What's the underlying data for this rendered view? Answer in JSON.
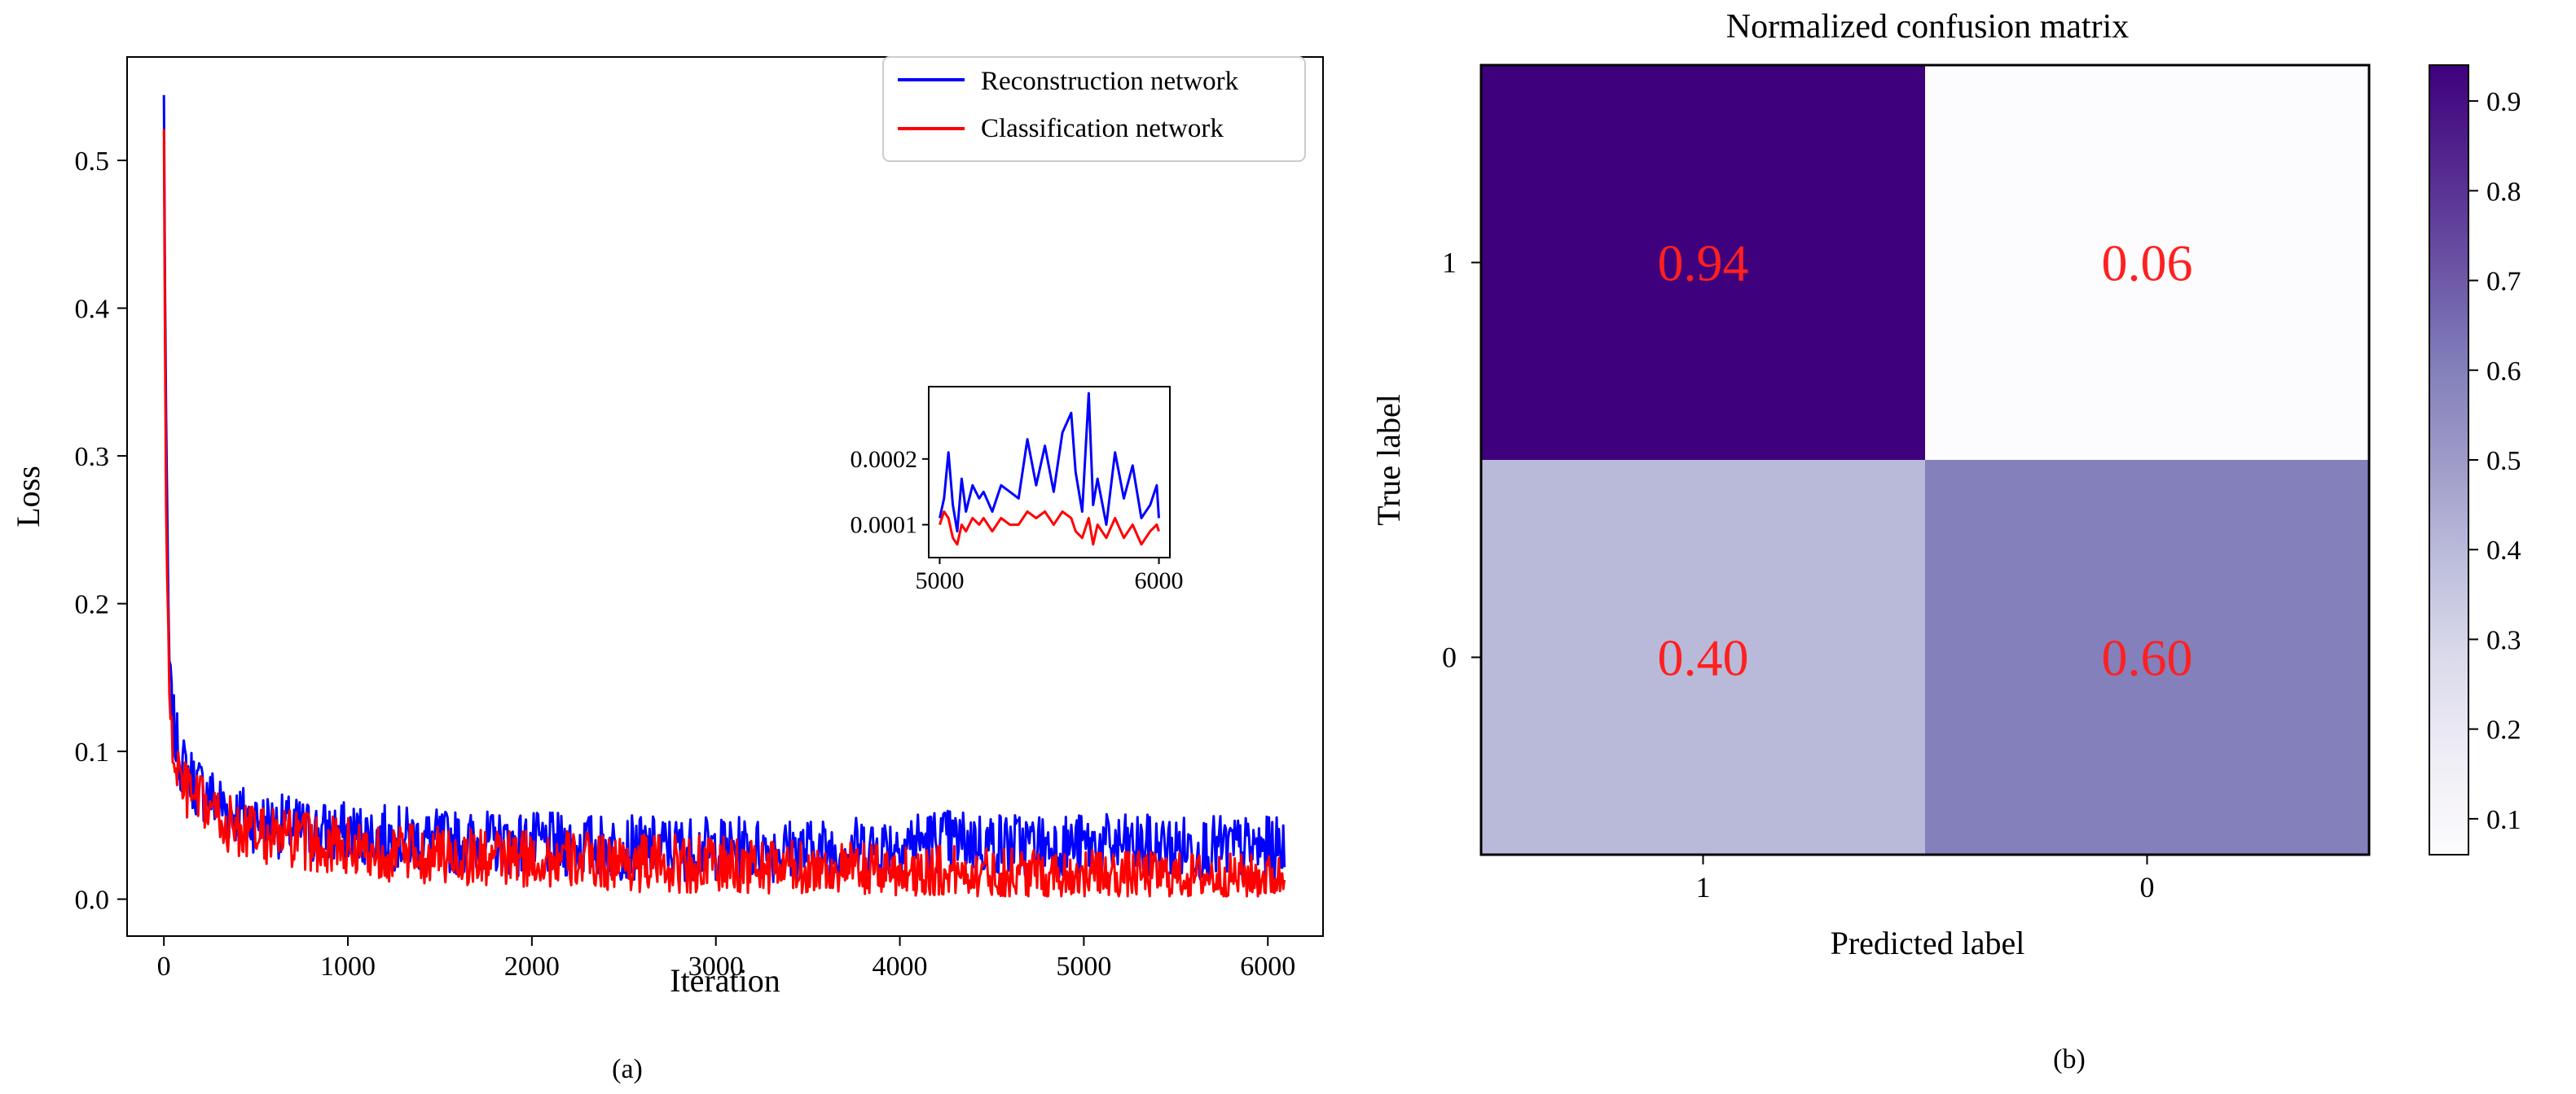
{
  "chart_data": [
    {
      "type": "line",
      "panel_label": "(a)",
      "title": "",
      "xlabel": "Iteration",
      "ylabel": "Loss",
      "xlim": [
        -200,
        6300
      ],
      "ylim": [
        -0.025,
        0.57
      ],
      "xticks": [
        0,
        1000,
        2000,
        3000,
        4000,
        5000,
        6000
      ],
      "yticks": [
        0.0,
        0.1,
        0.2,
        0.3,
        0.4,
        0.5
      ],
      "legend": {
        "position": "top-right"
      },
      "series": [
        {
          "name": "Reconstruction network",
          "color": "#0000ff",
          "x": [
            0,
            10,
            20,
            30,
            40,
            60,
            80,
            100,
            130,
            160,
            200,
            250,
            300,
            350,
            400,
            450,
            500,
            600,
            700,
            800,
            900,
            1000,
            1100,
            1200,
            1300,
            1400,
            1500,
            1700,
            2000,
            2300,
            2500,
            3000,
            3500,
            3800,
            4000,
            4200,
            4500,
            5000,
            5500,
            6000,
            6090
          ],
          "y": [
            0.54,
            0.35,
            0.22,
            0.16,
            0.13,
            0.11,
            0.1,
            0.09,
            0.085,
            0.08,
            0.075,
            0.07,
            0.065,
            0.06,
            0.058,
            0.055,
            0.053,
            0.05,
            0.048,
            0.046,
            0.045,
            0.044,
            0.043,
            0.042,
            0.041,
            0.04,
            0.039,
            0.038,
            0.037,
            0.036,
            0.035,
            0.034,
            0.033,
            0.035,
            0.038,
            0.04,
            0.038,
            0.036,
            0.035,
            0.034,
            0.034
          ]
        },
        {
          "name": "Classification network",
          "color": "#ff0000",
          "x": [
            0,
            10,
            20,
            30,
            40,
            60,
            80,
            100,
            130,
            160,
            200,
            250,
            300,
            350,
            400,
            450,
            500,
            600,
            700,
            800,
            900,
            1000,
            1100,
            1200,
            1300,
            1400,
            1500,
            1700,
            2000,
            2300,
            2500,
            3000,
            3500,
            3800,
            4000,
            4200,
            4500,
            5000,
            5500,
            6000,
            6090
          ],
          "y": [
            0.52,
            0.3,
            0.19,
            0.14,
            0.11,
            0.095,
            0.085,
            0.078,
            0.072,
            0.068,
            0.064,
            0.06,
            0.055,
            0.05,
            0.048,
            0.046,
            0.044,
            0.042,
            0.04,
            0.038,
            0.037,
            0.035,
            0.034,
            0.032,
            0.031,
            0.03,
            0.03,
            0.028,
            0.027,
            0.026,
            0.025,
            0.023,
            0.021,
            0.02,
            0.019,
            0.019,
            0.018,
            0.017,
            0.016,
            0.015,
            0.015
          ]
        }
      ],
      "inset": {
        "xlim": [
          4950,
          6050
        ],
        "ylim": [
          5e-05,
          0.00031
        ],
        "xticks": [
          5000,
          6000
        ],
        "yticks": [
          0.0001,
          0.0002
        ],
        "ytick_labels": [
          "0.0001",
          "0.0002"
        ],
        "series": [
          {
            "name": "Reconstruction network",
            "color": "#0000ff",
            "x": [
              5000,
              5020,
              5040,
              5060,
              5080,
              5100,
              5120,
              5150,
              5180,
              5200,
              5240,
              5280,
              5320,
              5360,
              5400,
              5440,
              5480,
              5520,
              5560,
              5600,
              5620,
              5650,
              5680,
              5700,
              5720,
              5760,
              5800,
              5840,
              5880,
              5920,
              5960,
              5990,
              6000
            ],
            "y": [
              0.00011,
              0.00014,
              0.00021,
              0.00013,
              9e-05,
              0.00017,
              0.00012,
              0.00016,
              0.00014,
              0.00015,
              0.00012,
              0.00016,
              0.00015,
              0.00014,
              0.00023,
              0.00016,
              0.00022,
              0.00015,
              0.00024,
              0.00027,
              0.00018,
              0.00012,
              0.0003,
              0.00013,
              0.00017,
              0.0001,
              0.00021,
              0.00014,
              0.00019,
              0.00011,
              0.00013,
              0.00016,
              0.00011
            ]
          },
          {
            "name": "Classification network",
            "color": "#ff0000",
            "x": [
              5000,
              5020,
              5040,
              5060,
              5080,
              5100,
              5120,
              5150,
              5180,
              5200,
              5240,
              5280,
              5320,
              5360,
              5400,
              5440,
              5480,
              5520,
              5560,
              5600,
              5620,
              5650,
              5680,
              5700,
              5720,
              5760,
              5800,
              5840,
              5880,
              5920,
              5960,
              5990,
              6000
            ],
            "y": [
              0.0001,
              0.00012,
              0.00011,
              8e-05,
              7e-05,
              0.0001,
              9e-05,
              0.00011,
              0.0001,
              0.00011,
              9e-05,
              0.00011,
              0.0001,
              0.0001,
              0.00012,
              0.00011,
              0.00012,
              0.0001,
              0.00012,
              0.00011,
              9e-05,
              8e-05,
              0.00011,
              7e-05,
              0.0001,
              8e-05,
              0.00011,
              8e-05,
              0.0001,
              7e-05,
              9e-05,
              0.0001,
              9e-05
            ]
          }
        ]
      }
    },
    {
      "type": "heatmap",
      "panel_label": "(b)",
      "title": "Normalized confusion matrix",
      "xlabel": "Predicted label",
      "ylabel": "True label",
      "xticks": [
        "1",
        "0"
      ],
      "yticks": [
        "1",
        "0"
      ],
      "values": [
        [
          0.94,
          0.06
        ],
        [
          0.4,
          0.6
        ]
      ],
      "value_labels": [
        [
          "0.94",
          "0.06"
        ],
        [
          "0.40",
          "0.60"
        ]
      ],
      "value_label_color": "#ff2020",
      "colormap": "Purples",
      "colormap_stops": [
        "#fcfbfd",
        "#efedf5",
        "#dadaeb",
        "#bcbddc",
        "#9e9ac8",
        "#807dba",
        "#6a51a3",
        "#54278f",
        "#3f007d"
      ],
      "colorbar": {
        "vmin": 0.06,
        "vmax": 0.94,
        "ticks": [
          0.1,
          0.2,
          0.3,
          0.4,
          0.5,
          0.6,
          0.7,
          0.8,
          0.9
        ],
        "tick_labels": [
          "0.1",
          "0.2",
          "0.3",
          "0.4",
          "0.5",
          "0.6",
          "0.7",
          "0.8",
          "0.9"
        ]
      }
    }
  ]
}
